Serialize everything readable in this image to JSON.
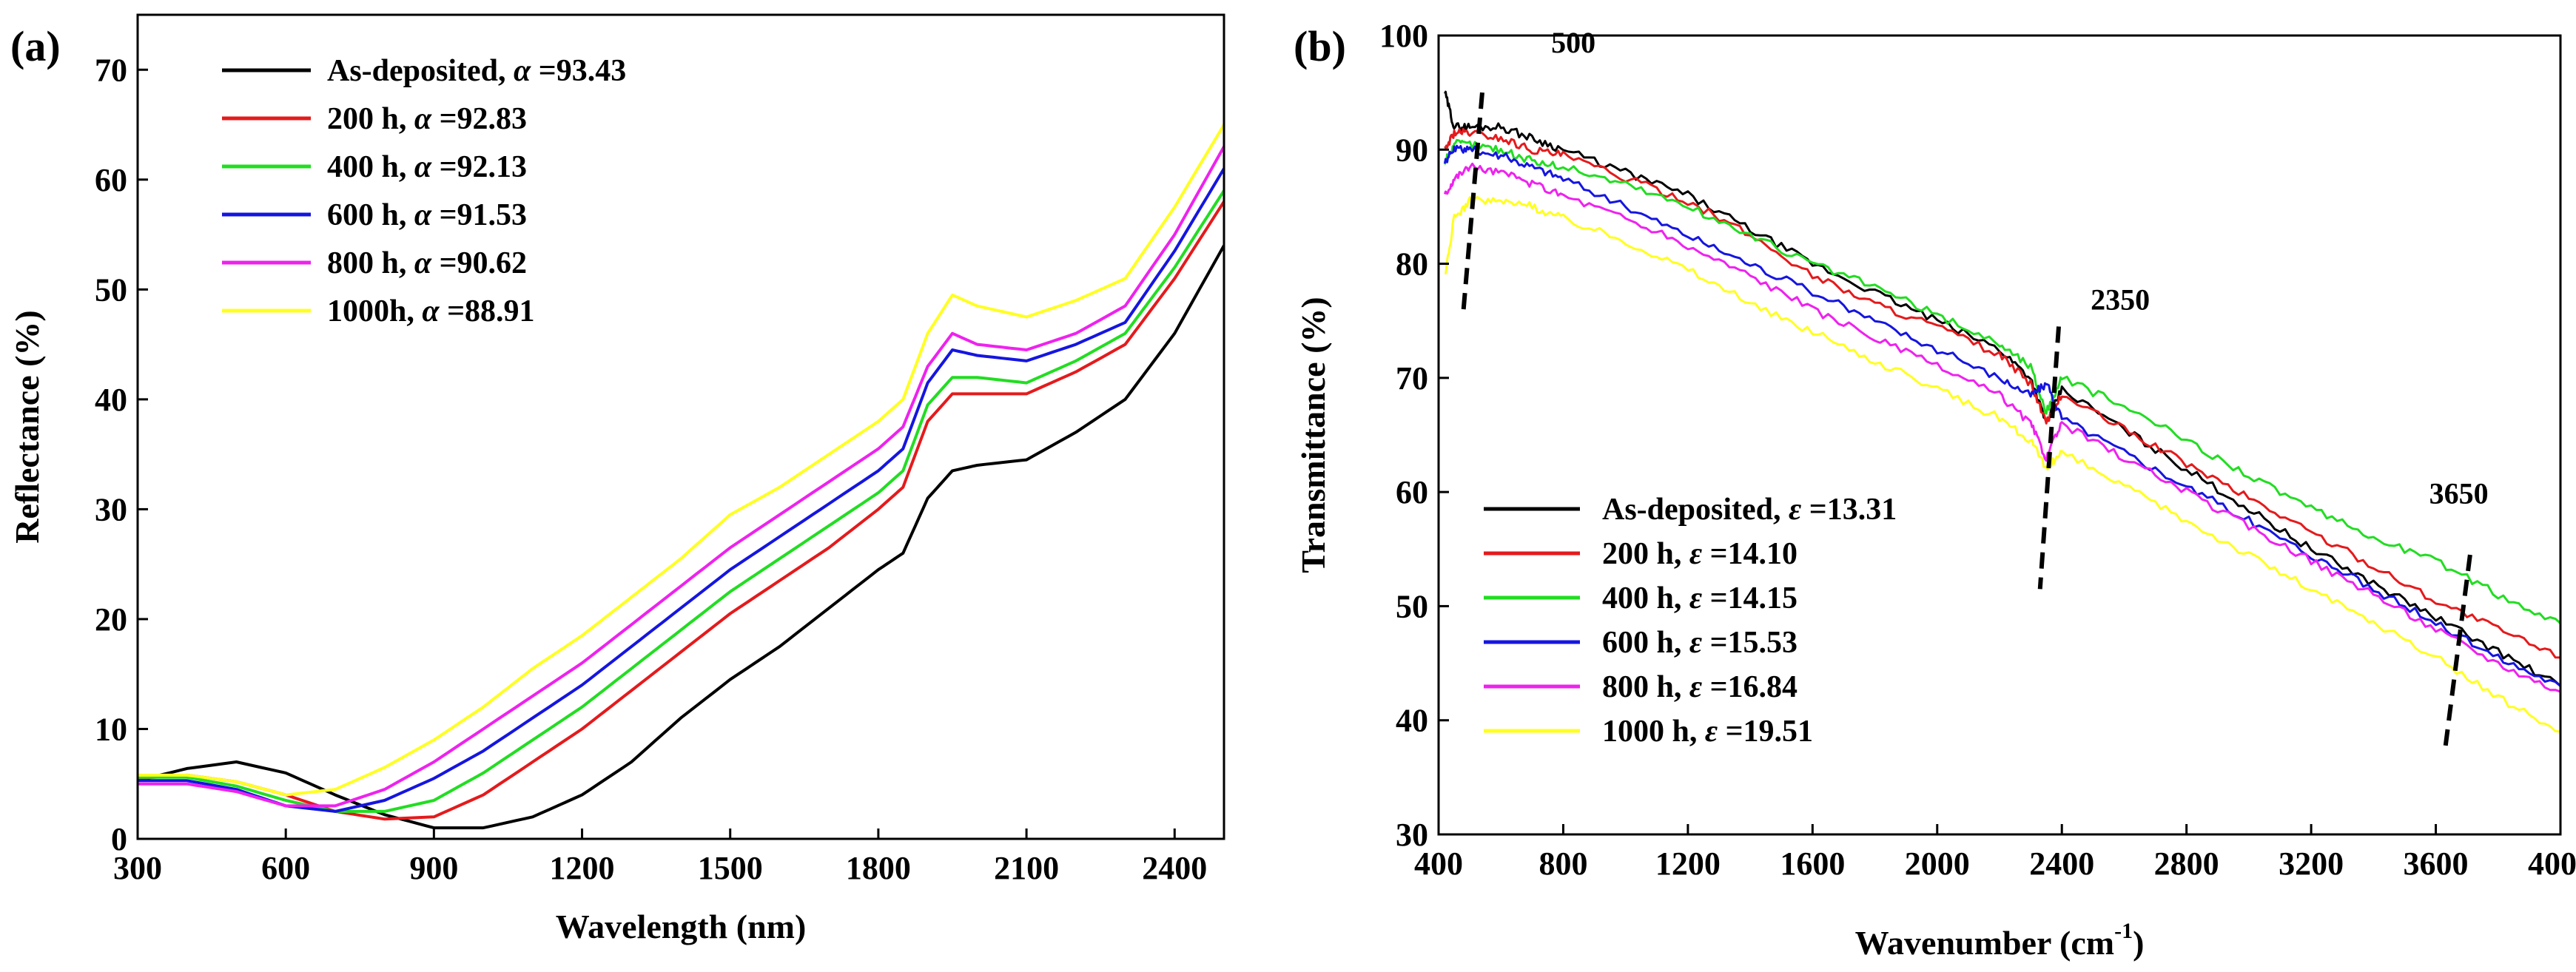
{
  "chart_data": [
    {
      "type": "line",
      "panel_label": "(a)",
      "xlabel": "Wavelength (nm)",
      "ylabel": "Reflectance (%)",
      "xlim": [
        300,
        2500
      ],
      "ylim": [
        0,
        75
      ],
      "xticks": [
        300,
        600,
        900,
        1200,
        1500,
        1800,
        2100,
        2400
      ],
      "yticks": [
        0,
        10,
        20,
        30,
        40,
        50,
        60,
        70
      ],
      "legend_position": "top-left",
      "series": [
        {
          "name": "As-deposited, α =93.43",
          "label_main": "As-deposited, ",
          "symbol": "α",
          "label_value": " =93.43",
          "color": "#000000",
          "x": [
            300,
            400,
            500,
            600,
            700,
            800,
            900,
            1000,
            1100,
            1200,
            1300,
            1400,
            1500,
            1600,
            1700,
            1800,
            1850,
            1900,
            1950,
            2000,
            2100,
            2200,
            2300,
            2400,
            2500
          ],
          "y": [
            5.3,
            6.4,
            7.0,
            6.0,
            4.0,
            2.2,
            1.0,
            1.0,
            2.0,
            4.0,
            7.0,
            11.0,
            14.5,
            17.5,
            21.0,
            24.5,
            26.0,
            31.0,
            33.5,
            34.0,
            34.5,
            37.0,
            40.0,
            46.0,
            54.0
          ]
        },
        {
          "name": "200 h, α =92.83",
          "label_main": "200 h, ",
          "symbol": "α",
          "label_value": " =92.83",
          "color": "#e41a1c",
          "x": [
            300,
            400,
            500,
            600,
            700,
            800,
            900,
            1000,
            1100,
            1200,
            1300,
            1400,
            1500,
            1600,
            1700,
            1800,
            1850,
            1900,
            1950,
            2000,
            2100,
            2200,
            2300,
            2400,
            2500
          ],
          "y": [
            5.5,
            5.8,
            5.2,
            4.0,
            2.5,
            1.8,
            2.0,
            4.0,
            7.0,
            10.0,
            13.5,
            17.0,
            20.5,
            23.5,
            26.5,
            30.0,
            32.0,
            38.0,
            40.5,
            40.5,
            40.5,
            42.5,
            45.0,
            51.0,
            58.0
          ]
        },
        {
          "name": "400 h, α =92.13",
          "label_main": "400 h, ",
          "symbol": "α",
          "label_value": " =92.13",
          "color": "#22dd22",
          "x": [
            300,
            400,
            500,
            600,
            700,
            800,
            900,
            1000,
            1100,
            1200,
            1300,
            1400,
            1500,
            1600,
            1700,
            1800,
            1850,
            1900,
            1950,
            2000,
            2100,
            2200,
            2300,
            2400,
            2500
          ],
          "y": [
            5.6,
            5.6,
            4.8,
            3.5,
            2.5,
            2.5,
            3.5,
            6.0,
            9.0,
            12.0,
            15.5,
            19.0,
            22.5,
            25.5,
            28.5,
            31.5,
            33.5,
            39.5,
            42.0,
            42.0,
            41.5,
            43.5,
            46.0,
            52.0,
            59.0
          ]
        },
        {
          "name": "600 h, α =91.53",
          "label_main": "600 h, ",
          "symbol": "α",
          "label_value": " =91.53",
          "color": "#1515e0",
          "x": [
            300,
            400,
            500,
            600,
            700,
            800,
            900,
            1000,
            1100,
            1200,
            1300,
            1400,
            1500,
            1600,
            1700,
            1800,
            1850,
            1900,
            1950,
            2000,
            2100,
            2200,
            2300,
            2400,
            2500
          ],
          "y": [
            5.3,
            5.3,
            4.5,
            3.0,
            2.5,
            3.5,
            5.5,
            8.0,
            11.0,
            14.0,
            17.5,
            21.0,
            24.5,
            27.5,
            30.5,
            33.5,
            35.5,
            41.5,
            44.5,
            44.0,
            43.5,
            45.0,
            47.0,
            53.5,
            61.0
          ]
        },
        {
          "name": "800 h, α =90.62",
          "label_main": "800 h, ",
          "symbol": "α",
          "label_value": " =90.62",
          "color": "#ee22ee",
          "x": [
            300,
            400,
            500,
            600,
            700,
            800,
            900,
            1000,
            1100,
            1200,
            1300,
            1400,
            1500,
            1600,
            1700,
            1800,
            1850,
            1900,
            1950,
            2000,
            2100,
            2200,
            2300,
            2400,
            2500
          ],
          "y": [
            5.0,
            5.0,
            4.3,
            3.0,
            3.0,
            4.5,
            7.0,
            10.0,
            13.0,
            16.0,
            19.5,
            23.0,
            26.5,
            29.5,
            32.5,
            35.5,
            37.5,
            43.0,
            46.0,
            45.0,
            44.5,
            46.0,
            48.5,
            55.0,
            63.0
          ]
        },
        {
          "name": "1000h, α =88.91",
          "label_main": "1000h, ",
          "symbol": "α",
          "label_value": " =88.91",
          "color": "#ffff22",
          "x": [
            300,
            400,
            500,
            600,
            700,
            800,
            900,
            1000,
            1100,
            1200,
            1300,
            1400,
            1500,
            1600,
            1700,
            1800,
            1850,
            1900,
            1950,
            2000,
            2100,
            2200,
            2300,
            2400,
            2500
          ],
          "y": [
            5.8,
            5.8,
            5.2,
            4.0,
            4.5,
            6.5,
            9.0,
            12.0,
            15.5,
            18.5,
            22.0,
            25.5,
            29.5,
            32.0,
            35.0,
            38.0,
            40.0,
            46.0,
            49.5,
            48.5,
            47.5,
            49.0,
            51.0,
            57.5,
            65.0
          ]
        }
      ]
    },
    {
      "type": "line",
      "panel_label": "(b)",
      "xlabel": "Wavenumber (cm",
      "xlabel_superscript": "-1",
      "xlabel_suffix": ")",
      "ylabel": "Transmittance (%)",
      "xlim": [
        400,
        4000
      ],
      "ylim": [
        30,
        100
      ],
      "xticks": [
        400,
        800,
        1200,
        1600,
        2000,
        2400,
        2800,
        3200,
        3600,
        4000
      ],
      "yticks": [
        30,
        40,
        50,
        60,
        70,
        80,
        90,
        100
      ],
      "legend_position": "bottom-left",
      "annotations": [
        {
          "text": "500",
          "x": 500
        },
        {
          "text": "2350",
          "x": 2350
        },
        {
          "text": "3650",
          "x": 3650
        }
      ],
      "series": [
        {
          "name": "As-deposited, ε =13.31",
          "label_main": "As-deposited, ",
          "symbol": "ε",
          "label_value": " =13.31",
          "color": "#000000",
          "x": [
            420,
            450,
            500,
            600,
            700,
            800,
            1000,
            1200,
            1400,
            1600,
            1800,
            2000,
            2200,
            2300,
            2350,
            2400,
            2600,
            2800,
            3000,
            3200,
            3400,
            3600,
            3800,
            4000
          ],
          "y": [
            95,
            92,
            92,
            92,
            91,
            90,
            88,
            86,
            83,
            80,
            77.5,
            75,
            72.5,
            70,
            66,
            69,
            65.5,
            62,
            58.5,
            55,
            52,
            49,
            46,
            43
          ]
        },
        {
          "name": "200 h, ε =14.10",
          "label_main": "200 h, ",
          "symbol": "ε",
          "label_value": " =14.10",
          "color": "#e41a1c",
          "x": [
            420,
            450,
            500,
            600,
            700,
            800,
            1000,
            1200,
            1400,
            1600,
            1800,
            2000,
            2200,
            2300,
            2350,
            2400,
            2600,
            2800,
            3000,
            3200,
            3400,
            3600,
            3800,
            4000
          ],
          "y": [
            90,
            91.5,
            91.5,
            91,
            90,
            89.5,
            87.5,
            85.5,
            82.5,
            79,
            76.5,
            74.5,
            72,
            69.5,
            66,
            68.5,
            65.5,
            62.5,
            59.5,
            56.5,
            53.5,
            50.5,
            48,
            45.5
          ]
        },
        {
          "name": "400 h, ε =14.15",
          "label_main": "400 h, ",
          "symbol": "ε",
          "label_value": " =14.15",
          "color": "#22dd22",
          "x": [
            420,
            450,
            500,
            600,
            700,
            800,
            1000,
            1200,
            1400,
            1600,
            1800,
            2000,
            2200,
            2300,
            2350,
            2400,
            2600,
            2800,
            3000,
            3200,
            3400,
            3600,
            3800,
            4000
          ],
          "y": [
            89,
            90.5,
            90.5,
            90,
            89,
            88.5,
            87,
            85,
            82.5,
            80,
            78,
            75.5,
            73,
            71,
            67,
            70,
            67.5,
            64.5,
            61.5,
            58.5,
            56,
            54,
            51,
            48.5
          ]
        },
        {
          "name": "600 h, ε =15.53",
          "label_main": "600 h, ",
          "symbol": "ε",
          "label_value": " =15.53",
          "color": "#1515e0",
          "x": [
            420,
            450,
            500,
            600,
            700,
            800,
            1000,
            1200,
            1400,
            1600,
            1800,
            2000,
            2200,
            2300,
            2350,
            2400,
            2600,
            2800,
            3000,
            3200,
            3400,
            3600,
            3800,
            4000
          ],
          "y": [
            89,
            90,
            90,
            89.5,
            88.5,
            87.5,
            85,
            82.5,
            80,
            77.5,
            75,
            72.5,
            70,
            68.5,
            69.5,
            66.5,
            63.5,
            60.5,
            57.5,
            54.5,
            51.5,
            48.5,
            45.5,
            43
          ]
        },
        {
          "name": "800 h, ε =16.84",
          "label_main": "800 h, ",
          "symbol": "ε",
          "label_value": " =16.84",
          "color": "#ee22ee",
          "x": [
            420,
            450,
            500,
            600,
            700,
            800,
            1000,
            1200,
            1400,
            1600,
            1800,
            2000,
            2200,
            2300,
            2350,
            2400,
            2600,
            2800,
            3000,
            3200,
            3400,
            3600,
            3800,
            4000
          ],
          "y": [
            86,
            87.5,
            88.5,
            88,
            87,
            86,
            84,
            81.5,
            79,
            76,
            73.5,
            71,
            68.5,
            66,
            63,
            66,
            63,
            60,
            57,
            54,
            51,
            48,
            45,
            42.5
          ]
        },
        {
          "name": "1000 h, ε =19.51",
          "label_main": "1000 h, ",
          "symbol": "ε",
          "label_value": " =19.51",
          "color": "#ffff22",
          "x": [
            420,
            450,
            500,
            600,
            700,
            800,
            1000,
            1200,
            1400,
            1600,
            1800,
            2000,
            2200,
            2300,
            2350,
            2400,
            2600,
            2800,
            3000,
            3200,
            3400,
            3600,
            3800,
            4000
          ],
          "y": [
            79,
            84,
            85.5,
            85.5,
            85,
            84,
            82,
            79.5,
            76.5,
            74,
            71.5,
            69,
            66.5,
            64.5,
            62,
            63.5,
            60.5,
            57.5,
            54.5,
            51.5,
            48.5,
            45.5,
            42,
            39
          ]
        }
      ]
    }
  ]
}
